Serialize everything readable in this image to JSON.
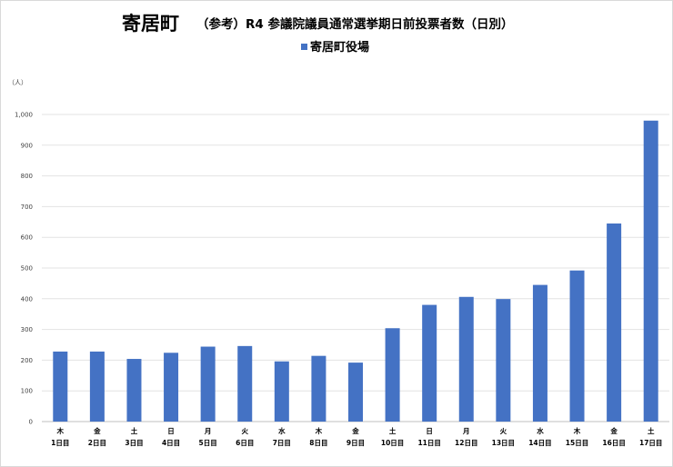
{
  "chart_data": {
    "type": "bar",
    "title": "寄居町",
    "subtitle": "（参考）R4 参議院議員通常選挙期日前投票者数（日別）",
    "ylabel": "（人）",
    "ylim": [
      0,
      1000
    ],
    "yticks": [
      "0",
      "100",
      "200",
      "300",
      "400",
      "500",
      "600",
      "700",
      "800",
      "900",
      "1,000"
    ],
    "grid": true,
    "legend_position": "top",
    "categories_weekday": [
      "木",
      "金",
      "土",
      "日",
      "月",
      "火",
      "水",
      "木",
      "金",
      "土",
      "日",
      "月",
      "火",
      "水",
      "木",
      "金",
      "土"
    ],
    "categories": [
      "1日目",
      "2日目",
      "3日目",
      "4日目",
      "5日目",
      "6日目",
      "7日目",
      "8日目",
      "9日目",
      "10日目",
      "11日目",
      "12日目",
      "13日目",
      "14日目",
      "15日目",
      "16日目",
      "17日目"
    ],
    "series": [
      {
        "name": "寄居町役場",
        "color": "#4472c4",
        "values": [
          228,
          228,
          204,
          224,
          244,
          246,
          196,
          214,
          192,
          304,
          380,
          406,
          399,
          445,
          492,
          645,
          980
        ]
      }
    ]
  }
}
